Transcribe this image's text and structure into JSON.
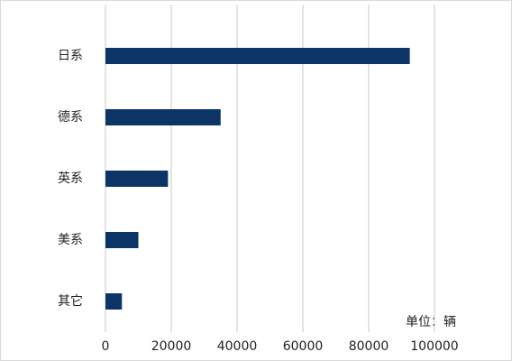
{
  "chart_data": {
    "type": "hbar",
    "categories": [
      "日系",
      "德系",
      "英系",
      "美系",
      "其它"
    ],
    "values": [
      92500,
      35000,
      19000,
      10000,
      5000
    ],
    "color": "#0d3466",
    "xlim": [
      0,
      100000
    ],
    "xticks": [
      0,
      20000,
      40000,
      60000,
      80000,
      100000
    ],
    "grid": true,
    "annotation": "单位：辆"
  }
}
